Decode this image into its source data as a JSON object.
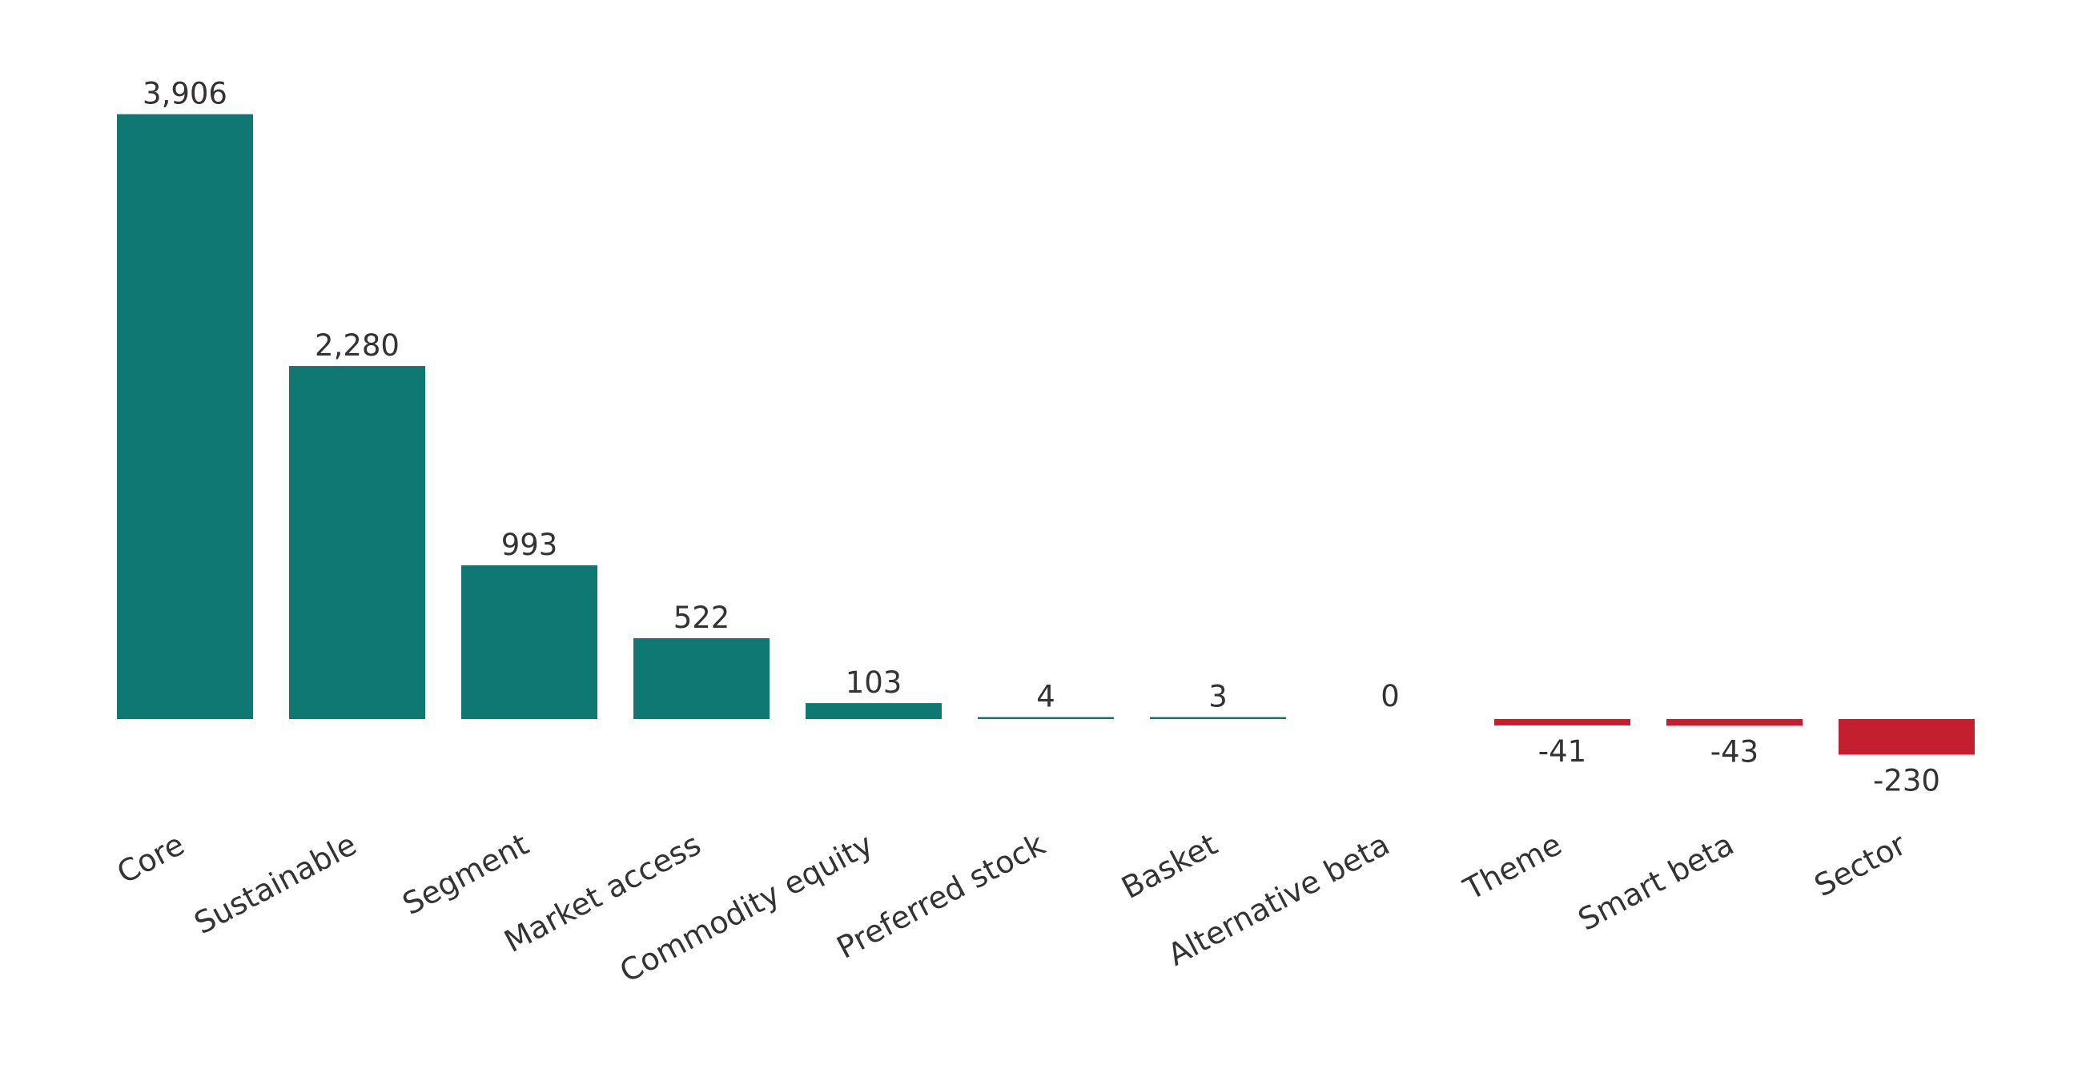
{
  "chart_data": {
    "type": "bar",
    "categories": [
      "Core",
      "Sustainable",
      "Segment",
      "Market access",
      "Commodity equity",
      "Preferred stock",
      "Basket",
      "Alternative beta",
      "Theme",
      "Smart beta",
      "Sector"
    ],
    "values": [
      3906,
      2280,
      993,
      522,
      103,
      4,
      3,
      0,
      -41,
      -43,
      -230
    ],
    "value_labels": [
      "3,906",
      "2,280",
      "993",
      "522",
      "103",
      "4",
      "3",
      "0",
      "-41",
      "-43",
      "-230"
    ],
    "title": "",
    "xlabel": "",
    "ylabel": "",
    "grid": false,
    "legend": "none",
    "colors": {
      "positive": "#0f7872",
      "negative": "#c41f2f",
      "text": "#333333"
    }
  }
}
